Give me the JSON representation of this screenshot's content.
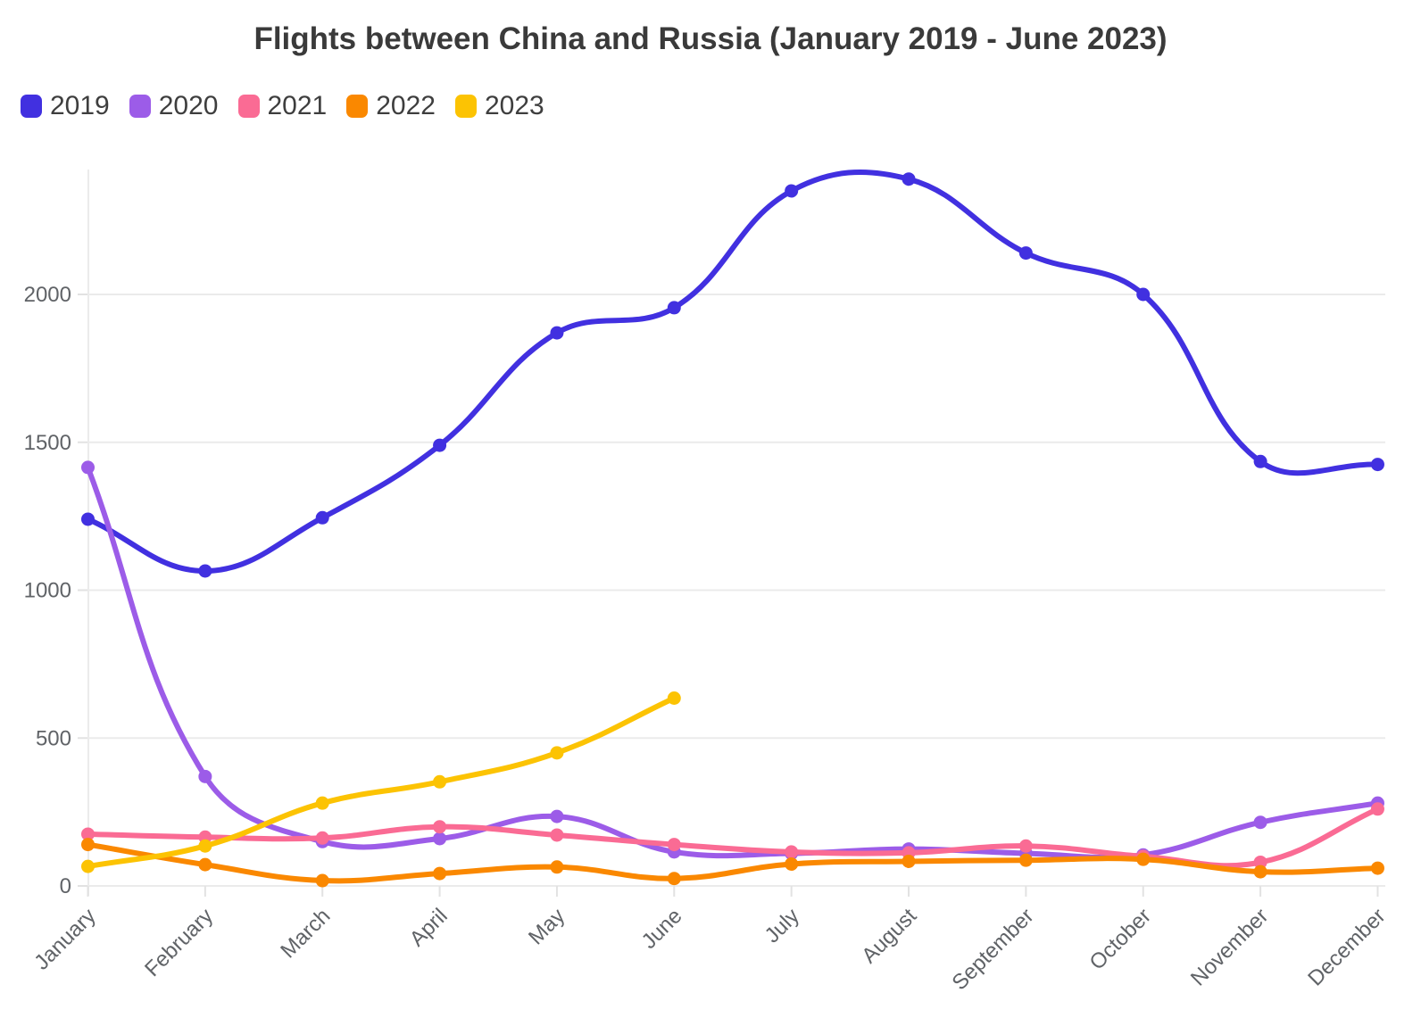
{
  "page": {
    "background": "#ffffff"
  },
  "chart_data": {
    "type": "line",
    "title": "Flights between China and Russia (January 2019 - June 2023)",
    "categories": [
      "January",
      "February",
      "March",
      "April",
      "May",
      "June",
      "July",
      "August",
      "September",
      "October",
      "November",
      "December"
    ],
    "y_ticks": [
      0,
      500,
      1000,
      1500,
      2000
    ],
    "ylim": [
      0,
      2415
    ],
    "grid": true,
    "legend_position": "top-left",
    "xlabel": "",
    "ylabel": "",
    "colors": {
      "grid": "#ebebeb",
      "axis_tick": "#e2e2e2",
      "tick_label": "#606367",
      "title_text": "#3a3a3a",
      "legend_text": "#3e3e3e"
    },
    "series": [
      {
        "name": "2019",
        "color": "#4130e0",
        "values": [
          1240,
          1065,
          1245,
          1490,
          1870,
          1955,
          2350,
          2390,
          2140,
          2000,
          1435,
          1425
        ]
      },
      {
        "name": "2020",
        "color": "#9c5ce8",
        "values": [
          1415,
          370,
          150,
          160,
          235,
          115,
          110,
          125,
          110,
          105,
          215,
          280
        ]
      },
      {
        "name": "2021",
        "color": "#fa6b94",
        "values": [
          175,
          165,
          162,
          200,
          172,
          140,
          115,
          112,
          135,
          100,
          80,
          260
        ]
      },
      {
        "name": "2022",
        "color": "#fa8800",
        "values": [
          140,
          72,
          18,
          42,
          64,
          25,
          74,
          83,
          87,
          90,
          48,
          60
        ]
      },
      {
        "name": "2023",
        "color": "#fcc303",
        "values": [
          66,
          135,
          280,
          352,
          450,
          635
        ]
      }
    ]
  }
}
